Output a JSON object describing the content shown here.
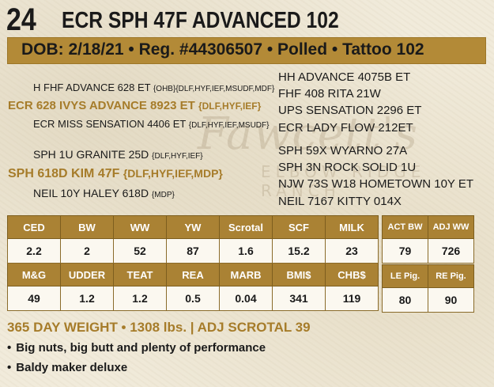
{
  "lot": "24",
  "name": "ECR SPH 47F ADVANCED 102",
  "info_bar": "DOB: 2/18/21 • Reg. #44306507 • Polled • Tattoo 102",
  "watermark": {
    "script": "Fawcett's",
    "sub": "ELBOW RIDGE RANCH"
  },
  "pedigree_left": [
    {
      "text": "H FHF ADVANCE 628 ET",
      "tag": "{OHB}{DLF,HYF,IEF,MSUDF,MDF}"
    },
    {
      "text": "ECR 628 IVYS ADVANCE 8923 ET",
      "tag": "{DLF,HYF,IEF}"
    },
    {
      "text": "ECR MISS SENSATION 4406 ET",
      "tag": "{DLF,HYF,IEF,MSUDF}"
    },
    {
      "text": "SPH 1U GRANITE 25D",
      "tag": "{DLF,HYF,IEF}"
    },
    {
      "text": "SPH 618D KIM 47F",
      "tag": "{DLF,HYF,IEF,MDP}"
    },
    {
      "text": "NEIL 10Y HALEY 618D",
      "tag": "{MDP}"
    }
  ],
  "pedigree_right": [
    "HH ADVANCE 4075B ET",
    "FHF 408 RITA 21W",
    "UPS SENSATION 2296 ET",
    "ECR LADY FLOW 212ET",
    "SPH 59X WYARNO 27A",
    "SPH 3N ROCK SOLID 1U",
    "NJW 73S W18 HOMETOWN 10Y ET",
    "NEIL 7167 KITTY 014X"
  ],
  "epd_row1": {
    "headers": [
      "CED",
      "BW",
      "WW",
      "YW",
      "Scrotal",
      "SCF",
      "MILK"
    ],
    "values": [
      "2.2",
      "2",
      "52",
      "87",
      "1.6",
      "15.2",
      "23"
    ]
  },
  "epd_row2": {
    "headers": [
      "M&G",
      "UDDER",
      "TEAT",
      "REA",
      "MARB",
      "BMI$",
      "CHB$"
    ],
    "values": [
      "49",
      "1.2",
      "1.2",
      "0.5",
      "0.04",
      "341",
      "119"
    ]
  },
  "actual_row1": {
    "headers": [
      "ACT BW",
      "ADJ WW"
    ],
    "values": [
      "79",
      "726"
    ]
  },
  "actual_row2": {
    "headers": [
      "LE Pig.",
      "RE Pig."
    ],
    "values": [
      "80",
      "90"
    ]
  },
  "weight_line": "365 DAY WEIGHT • 1308 lbs. | ADJ SCROTAL 39",
  "bullets": [
    "Big nuts, big butt and plenty of performance",
    "Baldy maker deluxe"
  ]
}
